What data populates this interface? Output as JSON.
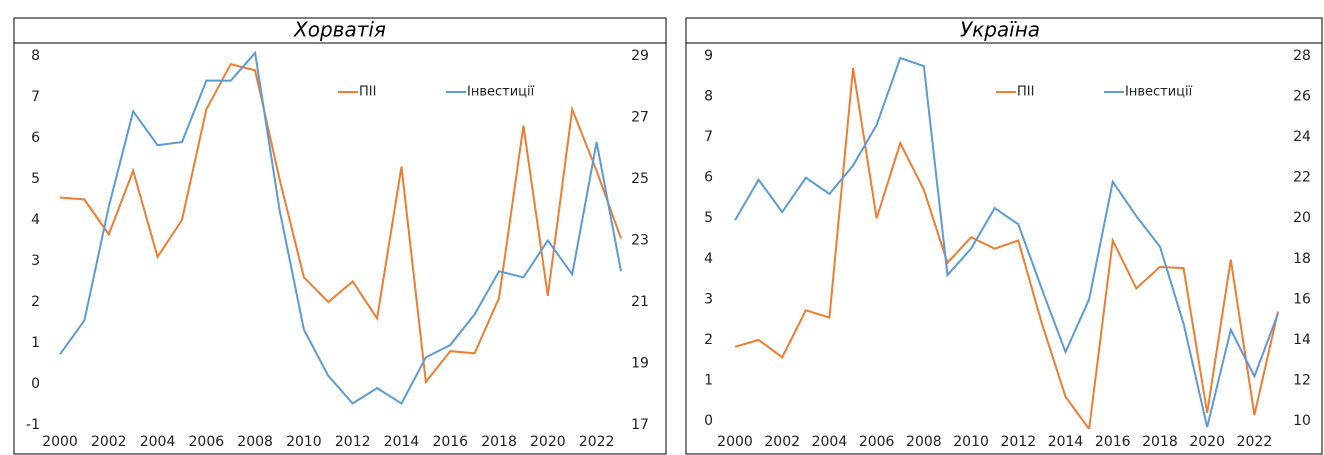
{
  "chart_data": [
    {
      "type": "line",
      "title": "Хорватія",
      "x": [
        2000,
        2001,
        2002,
        2003,
        2004,
        2005,
        2006,
        2007,
        2008,
        2009,
        2010,
        2011,
        2012,
        2013,
        2014,
        2015,
        2016,
        2017,
        2018,
        2019,
        2020,
        2021,
        2022,
        2023
      ],
      "xlim": [
        2000,
        2023
      ],
      "xticks": [
        2000,
        2002,
        2004,
        2006,
        2008,
        2010,
        2012,
        2014,
        2016,
        2018,
        2020,
        2022
      ],
      "ylim": [
        -1,
        8
      ],
      "yticks": [
        -1,
        0,
        1,
        2,
        3,
        4,
        5,
        6,
        7,
        8
      ],
      "y2lim": [
        17,
        29
      ],
      "y2ticks": [
        17,
        19,
        21,
        23,
        25,
        27,
        29
      ],
      "series": [
        {
          "name": "ПІІ",
          "color": "#ED7D31",
          "values": [
            4.55,
            4.5,
            3.65,
            5.2,
            3.1,
            4.0,
            6.7,
            7.8,
            7.65,
            5.0,
            2.6,
            2.0,
            2.5,
            1.6,
            5.3,
            0.05,
            0.8,
            0.75,
            2.1,
            6.3,
            2.15,
            6.7,
            5.2,
            3.55
          ]
        },
        {
          "name": "Інвестиції",
          "color": "#5B9BD5",
          "axis": "y2",
          "values": [
            19.3,
            20.4,
            24.1,
            27.2,
            26.1,
            26.2,
            28.2,
            28.2,
            29.1,
            24.0,
            20.1,
            18.6,
            17.7,
            18.2,
            17.7,
            19.2,
            19.6,
            20.6,
            22.0,
            21.8,
            23.0,
            21.9,
            26.2,
            22.0
          ]
        }
      ]
    },
    {
      "type": "line",
      "title": "Україна",
      "x": [
        2000,
        2001,
        2002,
        2003,
        2004,
        2005,
        2006,
        2007,
        2008,
        2009,
        2010,
        2011,
        2012,
        2013,
        2014,
        2015,
        2016,
        2017,
        2018,
        2019,
        2020,
        2021,
        2022,
        2023
      ],
      "xlim": [
        2000,
        2023
      ],
      "xticks": [
        2000,
        2002,
        2004,
        2006,
        2008,
        2010,
        2012,
        2014,
        2016,
        2018,
        2020,
        2022
      ],
      "ylim": [
        0,
        9
      ],
      "yticks": [
        0,
        1,
        2,
        3,
        4,
        5,
        6,
        7,
        8,
        9
      ],
      "y2lim": [
        10,
        28
      ],
      "y2ticks": [
        10,
        12,
        14,
        16,
        18,
        20,
        22,
        24,
        26,
        28
      ],
      "series": [
        {
          "name": "ПІІ",
          "color": "#ED7D31",
          "values": [
            1.83,
            2.0,
            1.57,
            2.73,
            2.55,
            8.7,
            5.0,
            6.85,
            5.7,
            3.9,
            4.53,
            4.25,
            4.45,
            2.4,
            0.6,
            -0.2,
            4.45,
            3.27,
            3.8,
            3.77,
            0.2,
            3.98,
            0.15,
            2.7
          ]
        },
        {
          "name": "Інвестиції",
          "color": "#5B9BD5",
          "axis": "y2",
          "values": [
            19.9,
            21.9,
            20.3,
            22.0,
            21.2,
            22.6,
            24.6,
            27.9,
            27.5,
            17.2,
            18.5,
            20.5,
            19.7,
            16.5,
            13.4,
            16.0,
            21.8,
            20.1,
            18.6,
            14.8,
            9.7,
            14.5,
            12.2,
            15.3
          ]
        }
      ]
    }
  ]
}
